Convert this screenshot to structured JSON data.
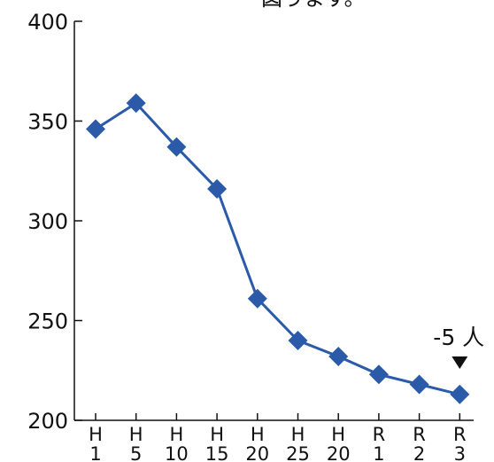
{
  "top_text": "図うます。",
  "chart_data": {
    "type": "line",
    "categories": [
      [
        "H",
        "1"
      ],
      [
        "H",
        "5"
      ],
      [
        "H",
        "10"
      ],
      [
        "H",
        "15"
      ],
      [
        "H",
        "20"
      ],
      [
        "H",
        "25"
      ],
      [
        "H",
        "20"
      ],
      [
        "R",
        "1"
      ],
      [
        "R",
        "2"
      ],
      [
        "R",
        "3"
      ]
    ],
    "values": [
      346,
      359,
      337,
      316,
      261,
      240,
      232,
      223,
      218,
      213
    ],
    "y_ticks": [
      "200",
      "250",
      "300",
      "350",
      "400"
    ],
    "ylim": [
      200,
      400
    ],
    "grid": false,
    "line_color": "#2a5aa8",
    "marker_color": "#2a5aa8",
    "marker": "diamond",
    "annotation": {
      "text": "-5 人",
      "category_index": 9,
      "marker": "down-triangle"
    }
  }
}
